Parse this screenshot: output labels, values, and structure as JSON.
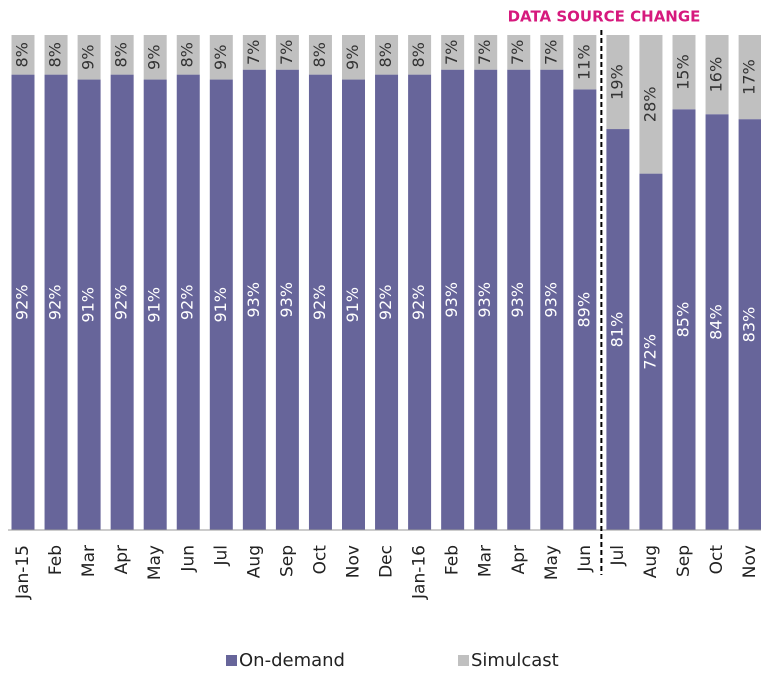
{
  "chart_data": {
    "type": "stacked_bar",
    "annotation": "DATA SOURCE CHANGE",
    "categories": [
      "Jan-15",
      "Feb",
      "Mar",
      "Apr",
      "May",
      "Jun",
      "Jul",
      "Aug",
      "Sep",
      "Oct",
      "Nov",
      "Dec",
      "Jan-16",
      "Feb",
      "Mar",
      "Apr",
      "May",
      "Jun",
      "Jul",
      "Aug",
      "Sep",
      "Oct",
      "Nov"
    ],
    "series": [
      {
        "name": "On-demand",
        "color": "#67659a",
        "values": [
          92,
          92,
          91,
          92,
          91,
          92,
          91,
          93,
          93,
          92,
          91,
          92,
          92,
          93,
          93,
          93,
          93,
          89,
          81,
          72,
          85,
          84,
          83
        ],
        "value_labels": [
          "92%",
          "92%",
          "91%",
          "92%",
          "91%",
          "92%",
          "91%",
          "93%",
          "93%",
          "92%",
          "91%",
          "92%",
          "92%",
          "93%",
          "93%",
          "93%",
          "93%",
          "89%",
          "81%",
          "72%",
          "85%",
          "84%",
          "83%"
        ]
      },
      {
        "name": "Simulcast",
        "color": "#c0c0c0",
        "values": [
          8,
          8,
          9,
          8,
          9,
          8,
          9,
          7,
          7,
          8,
          9,
          8,
          8,
          7,
          7,
          7,
          7,
          11,
          19,
          28,
          15,
          16,
          17
        ],
        "value_labels": [
          "8%",
          "8%",
          "9%",
          "8%",
          "9%",
          "8%",
          "9%",
          "7%",
          "7%",
          "8%",
          "9%",
          "8%",
          "8%",
          "7%",
          "7%",
          "7%",
          "7%",
          "11%",
          "19%",
          "28%",
          "15%",
          "16%",
          "17%"
        ]
      }
    ],
    "legend": "bottom"
  }
}
